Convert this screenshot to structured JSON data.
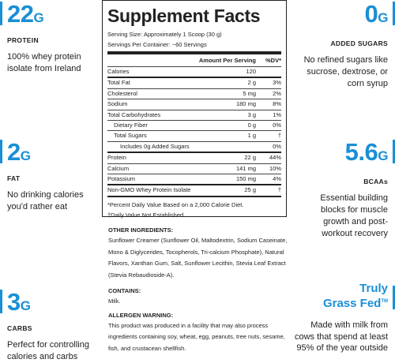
{
  "left": [
    {
      "value": "22",
      "unit": "G",
      "label": "PROTEIN",
      "text": "100% whey protein isolate from Ireland"
    },
    {
      "value": "2",
      "unit": "G",
      "label": "FAT",
      "text": "No drinking calories you'd rather eat"
    },
    {
      "value": "3",
      "unit": "G",
      "label": "CARBS",
      "text": "Perfect for controlling calories and carbs"
    }
  ],
  "right": [
    {
      "value": "0",
      "unit": "G",
      "label": "ADDED SUGARS",
      "text": "No refined sugars like sucrose, dextrose, or corn syrup"
    },
    {
      "value": "5.6",
      "unit": "G",
      "label": "BCAAs",
      "text": "Essential building blocks for muscle growth and post-workout recovery"
    }
  ],
  "grass_fed": {
    "line1": "Truly",
    "line2": "Grass Fed",
    "mark": "TM",
    "text": "Made with milk from cows that spend at least 95% of the year outside"
  },
  "facts": {
    "title": "Supplement Facts",
    "serving_size": "Serving Size: Approximately 1 Scoop (30 g)",
    "servings": "Servings Per Container: ~60 Servings",
    "header": {
      "amount": "Amount Per Serving",
      "dv": "%DV*"
    },
    "rows": [
      [
        "Calories",
        "120",
        ""
      ],
      [
        "Total Fat",
        "2 g",
        "3%"
      ],
      [
        "Cholesterol",
        "5 mg",
        "2%"
      ],
      [
        "Sodium",
        "180 mg",
        "8%"
      ],
      [
        "Total Carbohydrates",
        "3 g",
        "1%"
      ],
      [
        "Dietary Fiber",
        "0 g",
        "0%"
      ],
      [
        "Total Sugars",
        "1 g",
        "†"
      ],
      [
        "Includes 0g Added Sugars",
        "",
        "0%"
      ],
      [
        "Protein",
        "22 g",
        "44%"
      ],
      [
        "Calcium",
        "141 mg",
        "10%"
      ],
      [
        "Potassium",
        "150 mg",
        "4%"
      ],
      [
        "Non-GMO Whey Protein Isolate",
        "25 g",
        "†"
      ]
    ],
    "footnotes": [
      "*Percent Daily Value Based on a 2,000 Calorie Diet.",
      "†Daily Value Not Established."
    ]
  },
  "ingredients": {
    "heading": "OTHER INGREDIENTS:",
    "text": "Sunflower Creamer (Sunflower Oil, Maltodextrin, Sodium Caseinate, Mono & Diglycerides, Tocopherols, Tri-calcium Phosphate), Natural Flavors, Xanthan Gum, Salt, Sunflower Lecithin, Stevia Leaf Extract (Stevia Rebaudioside-A)."
  },
  "contains": {
    "heading": "CONTAINS:",
    "text": "Milk."
  },
  "allergen": {
    "heading": "ALLERGEN WARNING:",
    "text": "This product was produced in a facility that may also process ingredients containing soy, wheat, egg, peanuts, tree nuts, sesame, fish, and crustacean shellfish."
  }
}
